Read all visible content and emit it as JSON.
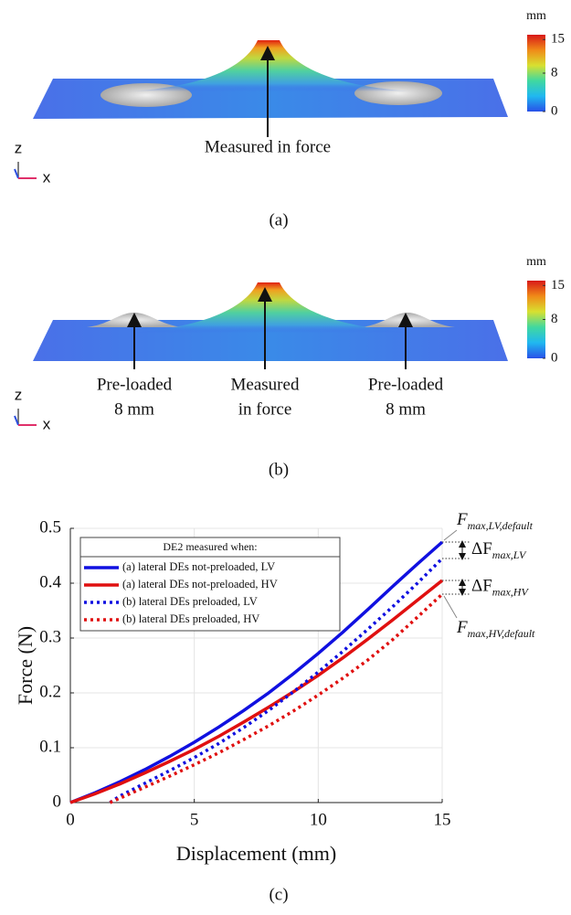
{
  "panels": [
    {
      "caption": "(a)",
      "colorbar": {
        "unit": "mm",
        "lim": [
          0,
          16
        ],
        "ticks": [
          0,
          8,
          15
        ]
      },
      "annotations": [
        [
          "Measured in force"
        ]
      ],
      "axes": [
        "z",
        "x"
      ]
    },
    {
      "caption": "(b)",
      "colorbar": {
        "unit": "mm",
        "lim": [
          0,
          16
        ],
        "ticks": [
          0,
          8,
          15
        ]
      },
      "annotations": [
        [
          "Pre-loaded",
          "8 mm"
        ],
        [
          "Measured",
          "in force"
        ],
        [
          "Pre-loaded",
          "8 mm"
        ]
      ],
      "axes": [
        "z",
        "x"
      ]
    }
  ],
  "chart_data": {
    "type": "line",
    "caption": "(c)",
    "x_label": "Displacement (mm)",
    "y_label": "Force (N)",
    "xlim": [
      0,
      15
    ],
    "ylim": [
      0,
      0.5
    ],
    "xticks": [
      0,
      5,
      10,
      15
    ],
    "yticks": [
      0,
      0.1,
      0.2,
      0.3,
      0.4,
      0.5
    ],
    "grid": true,
    "legend_title": "DE2 measured when:",
    "legend": "upper left",
    "series": [
      {
        "name": "(a) lateral DEs not-preloaded, LV",
        "color": "#1010e0",
        "dash": "solid",
        "x": [
          0,
          1,
          2,
          3,
          4,
          5,
          6,
          7,
          8,
          9,
          10,
          11,
          12,
          13,
          14,
          15
        ],
        "values": [
          0,
          0.018,
          0.038,
          0.06,
          0.084,
          0.11,
          0.138,
          0.168,
          0.2,
          0.235,
          0.272,
          0.311,
          0.352,
          0.394,
          0.435,
          0.475
        ]
      },
      {
        "name": "(a) lateral DEs not-preloaded, HV",
        "color": "#e01010",
        "dash": "solid",
        "x": [
          0,
          1,
          2,
          3,
          4,
          5,
          6,
          7,
          8,
          9,
          10,
          11,
          12,
          13,
          14,
          15
        ],
        "values": [
          0,
          0.016,
          0.034,
          0.054,
          0.075,
          0.097,
          0.121,
          0.147,
          0.174,
          0.202,
          0.232,
          0.264,
          0.298,
          0.333,
          0.369,
          0.405
        ]
      },
      {
        "name": "(b) lateral DEs preloaded, LV",
        "color": "#1010e0",
        "dash": "dotted",
        "x": [
          1.6,
          2,
          3,
          4,
          5,
          6,
          7,
          8,
          9,
          10,
          11,
          12,
          13,
          14,
          15
        ],
        "values": [
          0,
          0.012,
          0.035,
          0.058,
          0.082,
          0.108,
          0.137,
          0.168,
          0.202,
          0.238,
          0.276,
          0.316,
          0.357,
          0.4,
          0.445
        ]
      },
      {
        "name": "(b) lateral DEs preloaded, HV",
        "color": "#e01010",
        "dash": "dotted",
        "x": [
          1.6,
          2,
          3,
          4,
          5,
          6,
          7,
          8,
          9,
          10,
          11,
          12,
          13,
          14,
          15
        ],
        "values": [
          0,
          0.008,
          0.028,
          0.048,
          0.069,
          0.091,
          0.115,
          0.14,
          0.167,
          0.196,
          0.227,
          0.26,
          0.297,
          0.338,
          0.38
        ]
      }
    ],
    "annotations": [
      {
        "symbol": "F",
        "subscript": "max,LV,default"
      },
      {
        "symbol": "ΔF",
        "subscript": "max,LV"
      },
      {
        "symbol": "ΔF",
        "subscript": "max,HV"
      },
      {
        "symbol": "F",
        "subscript": "max,HV,default"
      }
    ]
  }
}
